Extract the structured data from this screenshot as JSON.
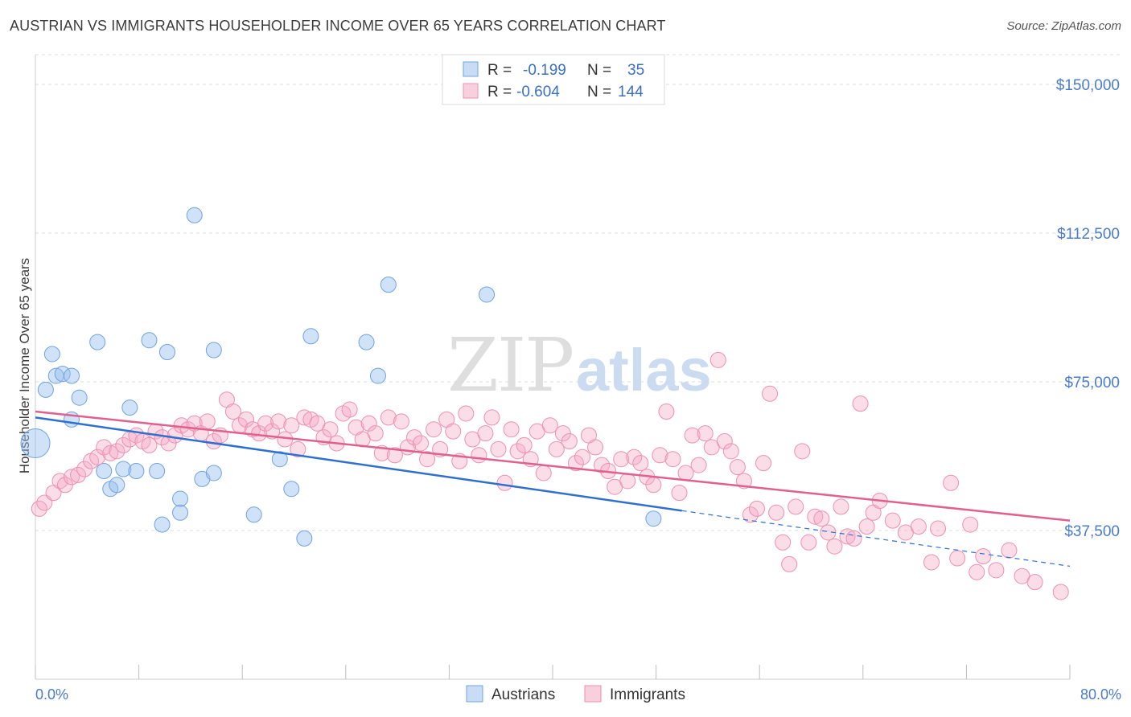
{
  "title": "AUSTRIAN VS IMMIGRANTS HOUSEHOLDER INCOME OVER 65 YEARS CORRELATION CHART",
  "source": "Source: ZipAtlas.com",
  "watermark": {
    "left": "ZIP",
    "right": "atlas"
  },
  "legend_top": {
    "rows": [
      {
        "r_label": "R =",
        "r_value": "-0.199",
        "n_label": "N =",
        "n_value": "35"
      },
      {
        "r_label": "R =",
        "r_value": "-0.604",
        "n_label": "N =",
        "n_value": "144"
      }
    ]
  },
  "chart_data": {
    "type": "scatter",
    "title": "AUSTRIAN VS IMMIGRANTS HOUSEHOLDER INCOME OVER 65 YEARS CORRELATION CHART",
    "xlabel": "",
    "ylabel": "Householder Income Over 65 years",
    "xlim": [
      0,
      80
    ],
    "ylim": [
      0,
      157500
    ],
    "x_tick_labels": [
      "0.0%",
      "80.0%"
    ],
    "y_ticks": [
      37500,
      75000,
      112500,
      150000
    ],
    "y_tick_labels": [
      "$37,500",
      "$75,000",
      "$112,500",
      "$150,000"
    ],
    "grid": true,
    "legend_position": "bottom-center",
    "colors": {
      "austrians": "#6fa3e0",
      "immigrants": "#ef8fb2",
      "austrians_line": "#2f6fd0",
      "immigrants_line": "#e0608e"
    },
    "series": [
      {
        "name": "Austrians",
        "r": -0.199,
        "n": 35,
        "trend": {
          "x0": 0,
          "y0": 66000,
          "x1": 50,
          "y1": 42500,
          "dashed_to_x": 80,
          "dashed_to_y": 28500
        },
        "points": [
          [
            0.0,
            59500
          ],
          [
            0.8,
            73000
          ],
          [
            1.3,
            82000
          ],
          [
            1.6,
            76500
          ],
          [
            2.1,
            77000
          ],
          [
            2.8,
            76500
          ],
          [
            2.8,
            65500
          ],
          [
            3.4,
            71000
          ],
          [
            4.8,
            85000
          ],
          [
            5.3,
            52500
          ],
          [
            5.8,
            48000
          ],
          [
            6.3,
            49000
          ],
          [
            6.8,
            53000
          ],
          [
            7.3,
            68500
          ],
          [
            7.8,
            52500
          ],
          [
            8.8,
            85500
          ],
          [
            9.4,
            52500
          ],
          [
            9.8,
            39000
          ],
          [
            10.2,
            82500
          ],
          [
            11.2,
            42000
          ],
          [
            11.2,
            45500
          ],
          [
            12.3,
            117000
          ],
          [
            12.9,
            50500
          ],
          [
            13.8,
            83000
          ],
          [
            13.8,
            52000
          ],
          [
            16.9,
            41500
          ],
          [
            18.9,
            55500
          ],
          [
            19.8,
            48000
          ],
          [
            20.8,
            35500
          ],
          [
            21.3,
            86500
          ],
          [
            25.6,
            85000
          ],
          [
            26.5,
            76500
          ],
          [
            27.3,
            99500
          ],
          [
            34.9,
            97000
          ],
          [
            47.8,
            40500
          ]
        ]
      },
      {
        "name": "Immigrants",
        "r": -0.604,
        "n": 144,
        "trend": {
          "x0": 0,
          "y0": 67500,
          "x1": 80,
          "y1": 40000
        },
        "points": [
          [
            0.3,
            43000
          ],
          [
            0.7,
            44500
          ],
          [
            1.4,
            47000
          ],
          [
            1.9,
            50000
          ],
          [
            2.3,
            49000
          ],
          [
            2.8,
            51000
          ],
          [
            3.3,
            51500
          ],
          [
            3.8,
            53000
          ],
          [
            4.3,
            55000
          ],
          [
            4.8,
            56000
          ],
          [
            5.3,
            58500
          ],
          [
            5.8,
            57000
          ],
          [
            6.3,
            57500
          ],
          [
            6.8,
            59000
          ],
          [
            7.3,
            60500
          ],
          [
            7.8,
            61500
          ],
          [
            8.3,
            60000
          ],
          [
            8.8,
            59000
          ],
          [
            9.3,
            62500
          ],
          [
            9.8,
            61000
          ],
          [
            10.3,
            59500
          ],
          [
            10.8,
            61500
          ],
          [
            11.3,
            64000
          ],
          [
            11.8,
            63000
          ],
          [
            12.3,
            64500
          ],
          [
            12.8,
            62000
          ],
          [
            13.3,
            65000
          ],
          [
            13.8,
            60000
          ],
          [
            14.3,
            61500
          ],
          [
            14.8,
            70500
          ],
          [
            15.3,
            67500
          ],
          [
            15.8,
            64000
          ],
          [
            16.3,
            65500
          ],
          [
            16.8,
            63000
          ],
          [
            17.3,
            62000
          ],
          [
            17.8,
            64500
          ],
          [
            18.3,
            62500
          ],
          [
            18.8,
            65000
          ],
          [
            19.3,
            60500
          ],
          [
            19.8,
            64000
          ],
          [
            20.3,
            58000
          ],
          [
            20.8,
            66000
          ],
          [
            21.3,
            65500
          ],
          [
            21.8,
            64500
          ],
          [
            22.3,
            61000
          ],
          [
            22.8,
            63000
          ],
          [
            23.3,
            59500
          ],
          [
            23.8,
            67000
          ],
          [
            24.3,
            68000
          ],
          [
            24.8,
            63500
          ],
          [
            25.3,
            60500
          ],
          [
            25.8,
            64500
          ],
          [
            26.3,
            62000
          ],
          [
            26.8,
            57000
          ],
          [
            27.3,
            66000
          ],
          [
            27.8,
            56500
          ],
          [
            28.3,
            65000
          ],
          [
            28.8,
            58500
          ],
          [
            29.3,
            61000
          ],
          [
            29.8,
            59500
          ],
          [
            30.3,
            55500
          ],
          [
            30.8,
            63000
          ],
          [
            31.3,
            58000
          ],
          [
            31.8,
            65500
          ],
          [
            32.3,
            62500
          ],
          [
            32.8,
            55000
          ],
          [
            33.3,
            67000
          ],
          [
            33.8,
            60500
          ],
          [
            34.3,
            56500
          ],
          [
            34.8,
            62000
          ],
          [
            35.3,
            66000
          ],
          [
            35.8,
            58000
          ],
          [
            36.3,
            49500
          ],
          [
            36.8,
            63000
          ],
          [
            37.3,
            57500
          ],
          [
            37.8,
            59000
          ],
          [
            38.3,
            55500
          ],
          [
            38.8,
            62500
          ],
          [
            39.3,
            52000
          ],
          [
            39.8,
            64000
          ],
          [
            40.3,
            58000
          ],
          [
            40.8,
            62000
          ],
          [
            41.3,
            60000
          ],
          [
            41.8,
            54500
          ],
          [
            42.3,
            56000
          ],
          [
            42.8,
            61500
          ],
          [
            43.3,
            58500
          ],
          [
            43.8,
            54000
          ],
          [
            44.3,
            52500
          ],
          [
            44.8,
            48500
          ],
          [
            45.3,
            55500
          ],
          [
            45.8,
            50000
          ],
          [
            46.3,
            56000
          ],
          [
            46.8,
            54500
          ],
          [
            47.3,
            51000
          ],
          [
            47.8,
            49000
          ],
          [
            48.3,
            56500
          ],
          [
            48.8,
            67500
          ],
          [
            49.3,
            55500
          ],
          [
            49.8,
            47000
          ],
          [
            50.3,
            52000
          ],
          [
            50.8,
            61500
          ],
          [
            51.3,
            54000
          ],
          [
            51.8,
            62000
          ],
          [
            52.3,
            58500
          ],
          [
            52.8,
            80500
          ],
          [
            53.3,
            60000
          ],
          [
            53.8,
            57500
          ],
          [
            54.3,
            53500
          ],
          [
            54.8,
            50000
          ],
          [
            55.3,
            41500
          ],
          [
            55.8,
            43000
          ],
          [
            56.3,
            54500
          ],
          [
            56.8,
            72000
          ],
          [
            57.3,
            42000
          ],
          [
            57.8,
            34500
          ],
          [
            58.3,
            29000
          ],
          [
            58.8,
            43500
          ],
          [
            59.3,
            57500
          ],
          [
            59.8,
            34500
          ],
          [
            60.3,
            41000
          ],
          [
            60.8,
            40500
          ],
          [
            61.3,
            37000
          ],
          [
            61.8,
            33500
          ],
          [
            62.3,
            43500
          ],
          [
            62.8,
            36000
          ],
          [
            63.3,
            35500
          ],
          [
            63.8,
            69500
          ],
          [
            64.3,
            38500
          ],
          [
            64.8,
            42000
          ],
          [
            65.3,
            45000
          ],
          [
            66.3,
            40000
          ],
          [
            67.3,
            37000
          ],
          [
            68.3,
            38500
          ],
          [
            69.3,
            29500
          ],
          [
            69.8,
            38000
          ],
          [
            70.8,
            49500
          ],
          [
            71.3,
            30500
          ],
          [
            72.3,
            39000
          ],
          [
            72.8,
            27000
          ],
          [
            73.3,
            31000
          ],
          [
            74.3,
            27500
          ],
          [
            75.3,
            32500
          ],
          [
            76.3,
            26000
          ],
          [
            77.3,
            24500
          ],
          [
            79.3,
            22000
          ]
        ]
      }
    ]
  },
  "bottom_legend": {
    "items": [
      {
        "label": "Austrians"
      },
      {
        "label": "Immigrants"
      }
    ]
  }
}
